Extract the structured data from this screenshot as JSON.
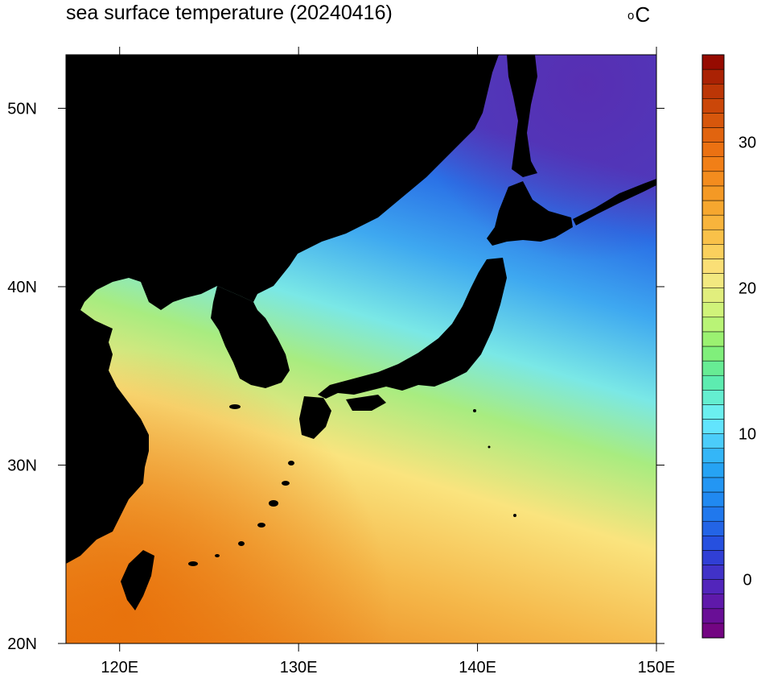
{
  "map": {
    "title": "sea surface temperature (20240416)",
    "units_degree": "o",
    "units_letter": "C",
    "region": "East Asia / Northwest Pacific",
    "lon_range": [
      117,
      150
    ],
    "lat_range": [
      20,
      53
    ],
    "lon_ticks": [
      {
        "value": 120,
        "label": "120E"
      },
      {
        "value": 130,
        "label": "130E"
      },
      {
        "value": 140,
        "label": "140E"
      },
      {
        "value": 150,
        "label": "150E"
      }
    ],
    "lat_ticks": [
      {
        "value": 20,
        "label": "20N"
      },
      {
        "value": 30,
        "label": "30N"
      },
      {
        "value": 40,
        "label": "40N"
      },
      {
        "value": 50,
        "label": "50N"
      }
    ],
    "land_color": "#000000"
  },
  "colorbar": {
    "min": -4,
    "max": 36,
    "step": 1,
    "ticks": [
      {
        "value": 0,
        "label": "0"
      },
      {
        "value": 10,
        "label": "10"
      },
      {
        "value": 20,
        "label": "20"
      },
      {
        "value": 30,
        "label": "30"
      }
    ],
    "color_stops": [
      {
        "value": -4,
        "color": "#780078"
      },
      {
        "value": -1,
        "color": "#5a1eb4"
      },
      {
        "value": 2,
        "color": "#2846dc"
      },
      {
        "value": 5,
        "color": "#1e82f0"
      },
      {
        "value": 8,
        "color": "#28aaf5"
      },
      {
        "value": 11,
        "color": "#6ef0ff"
      },
      {
        "value": 14,
        "color": "#5aeba0"
      },
      {
        "value": 16,
        "color": "#8cf06e"
      },
      {
        "value": 18,
        "color": "#c8f578"
      },
      {
        "value": 21,
        "color": "#fae682"
      },
      {
        "value": 23,
        "color": "#fac850"
      },
      {
        "value": 26,
        "color": "#f5a028"
      },
      {
        "value": 29,
        "color": "#f07814"
      },
      {
        "value": 32,
        "color": "#d2500a"
      },
      {
        "value": 34,
        "color": "#b42d05"
      },
      {
        "value": 36,
        "color": "#8c0000"
      }
    ]
  }
}
